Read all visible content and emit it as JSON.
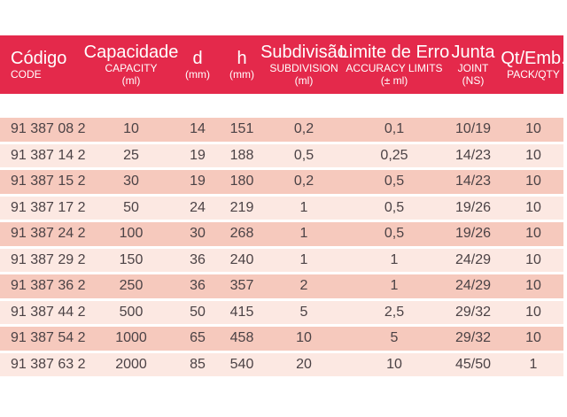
{
  "colors": {
    "page_bg": "#ffffff",
    "header_bg": "#e4294b",
    "header_text": "#ffffff",
    "row_dark": "#f6c9bd",
    "row_light": "#fce8e2",
    "body_text": "#4b4245"
  },
  "table": {
    "header": [
      {
        "lines": [
          "Código",
          "CODE"
        ]
      },
      {
        "lines": [
          "Capacidade",
          "CAPACITY",
          "(ml)"
        ]
      },
      {
        "lines": [
          "d",
          "(mm)"
        ]
      },
      {
        "lines": [
          "h",
          "(mm)"
        ]
      },
      {
        "lines": [
          "Subdivisão",
          "SUBDIVISION",
          "(ml)"
        ]
      },
      {
        "lines": [
          "Limite de Erro",
          "ACCURACY LIMITS",
          "(± ml)"
        ]
      },
      {
        "lines": [
          "Junta",
          "JOINT",
          "(NS)"
        ]
      },
      {
        "lines": [
          "Qt/Emb.",
          "PACK/QTY"
        ]
      }
    ],
    "rows": [
      [
        "91 387 08 2",
        "10",
        "14",
        "151",
        "0,2",
        "0,1",
        "10/19",
        "10"
      ],
      [
        "91 387 14 2",
        "25",
        "19",
        "188",
        "0,5",
        "0,25",
        "14/23",
        "10"
      ],
      [
        "91 387 15 2",
        "30",
        "19",
        "180",
        "0,2",
        "0,5",
        "14/23",
        "10"
      ],
      [
        "91 387 17 2",
        "50",
        "24",
        "219",
        "1",
        "0,5",
        "19/26",
        "10"
      ],
      [
        "91 387 24 2",
        "100",
        "30",
        "268",
        "1",
        "0,5",
        "19/26",
        "10"
      ],
      [
        "91 387 29 2",
        "150",
        "36",
        "240",
        "1",
        "1",
        "24/29",
        "10"
      ],
      [
        "91 387 36 2",
        "250",
        "36",
        "357",
        "2",
        "1",
        "24/29",
        "10"
      ],
      [
        "91 387 44 2",
        "500",
        "50",
        "415",
        "5",
        "2,5",
        "29/32",
        "10"
      ],
      [
        "91 387 54 2",
        "1000",
        "65",
        "458",
        "10",
        "5",
        "29/32",
        "10"
      ],
      [
        "91 387 63 2",
        "2000",
        "85",
        "540",
        "20",
        "10",
        "45/50",
        "1"
      ]
    ]
  },
  "chart_data": {
    "type": "table",
    "title": "",
    "columns": [
      "Código / CODE",
      "Capacidade / CAPACITY (ml)",
      "d (mm)",
      "h (mm)",
      "Subdivisão / SUBDIVISION (ml)",
      "Limite de Erro / ACCURACY LIMITS (± ml)",
      "Junta / JOINT (NS)",
      "Qt/Emb. / PACK/QTY"
    ],
    "rows": [
      [
        "91 387 08 2",
        10,
        14,
        151,
        "0,2",
        "0,1",
        "10/19",
        10
      ],
      [
        "91 387 14 2",
        25,
        19,
        188,
        "0,5",
        "0,25",
        "14/23",
        10
      ],
      [
        "91 387 15 2",
        30,
        19,
        180,
        "0,2",
        "0,5",
        "14/23",
        10
      ],
      [
        "91 387 17 2",
        50,
        24,
        219,
        "1",
        "0,5",
        "19/26",
        10
      ],
      [
        "91 387 24 2",
        100,
        30,
        268,
        "1",
        "0,5",
        "19/26",
        10
      ],
      [
        "91 387 29 2",
        150,
        36,
        240,
        "1",
        "1",
        "24/29",
        10
      ],
      [
        "91 387 36 2",
        250,
        36,
        357,
        "2",
        "1",
        "24/29",
        10
      ],
      [
        "91 387 44 2",
        500,
        50,
        415,
        "5",
        "2,5",
        "29/32",
        10
      ],
      [
        "91 387 54 2",
        1000,
        65,
        458,
        "10",
        "5",
        "29/32",
        10
      ],
      [
        "91 387 63 2",
        2000,
        85,
        540,
        "20",
        "10",
        "45/50",
        1
      ]
    ]
  }
}
